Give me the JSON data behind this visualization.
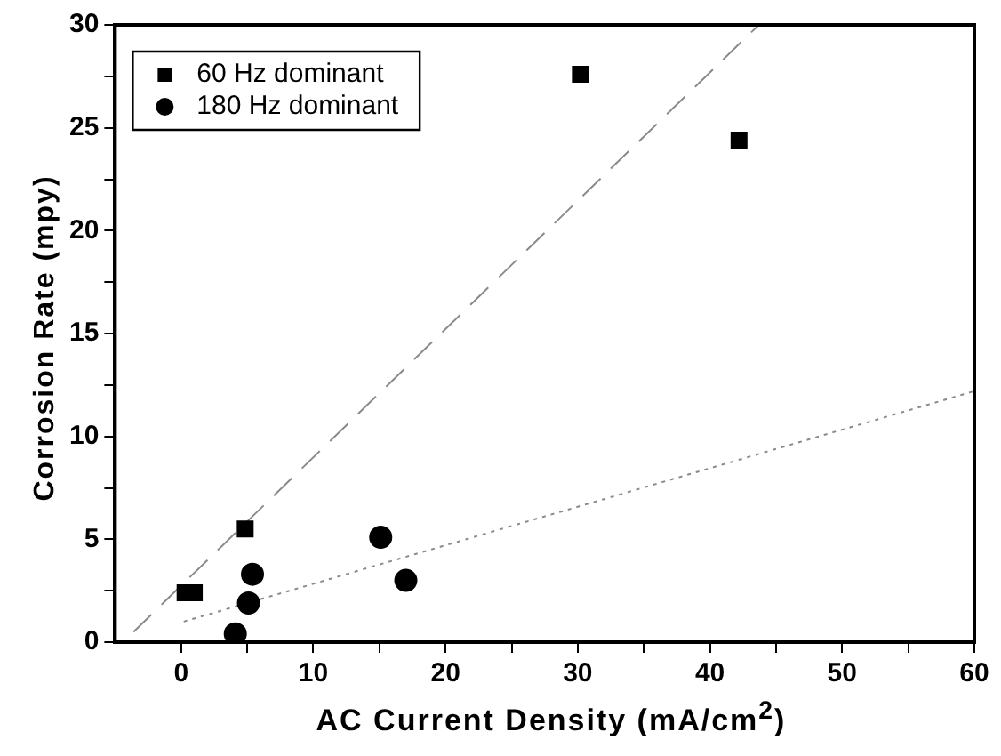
{
  "chart_data": {
    "type": "scatter",
    "xlabel": "AC Current Density (mA/cm$^{2}$)",
    "ylabel": "Corrosion Rate (mpy)",
    "xlim": [
      -5,
      60
    ],
    "xticks": [
      0,
      {
        "value": 5,
        "label": null
      },
      10,
      {
        "value": 15,
        "label": null
      },
      20,
      {
        "value": 25,
        "label": null
      },
      30,
      {
        "value": 35,
        "label": null
      },
      40,
      {
        "value": 45,
        "label": null
      },
      50,
      {
        "value": 55,
        "label": null
      },
      60
    ],
    "ylim": [
      0,
      30
    ],
    "yticks": [
      0,
      {
        "value": 2.5,
        "label": null
      },
      5,
      {
        "value": 7.5,
        "label": null
      },
      10,
      {
        "value": 12.5,
        "label": null
      },
      15,
      {
        "value": 17.5,
        "label": null
      },
      20,
      {
        "value": 22.5,
        "label": null
      },
      25,
      {
        "value": 27.5,
        "label": null
      },
      30
    ],
    "legend": "top left",
    "grid": false,
    "series": [
      {
        "name": "60 Hz dominant",
        "marker": "square",
        "color": "#000000",
        "x": [
          0.3,
          1.0,
          4.85,
          30.2,
          42.2
        ],
        "values": [
          2.4,
          2.4,
          5.5,
          27.6,
          24.4
        ]
      },
      {
        "name": "180 Hz dominant",
        "marker": "circle",
        "color": "#000000",
        "x": [
          4.1,
          5.1,
          5.4,
          15.1,
          17.0
        ],
        "values": [
          0.4,
          1.9,
          3.3,
          5.1,
          3.0
        ]
      },
      {
        "type": "line",
        "marker": "none",
        "line_style": "dashed",
        "color": "#8a8a8a",
        "x": [
          -3.6,
          43.7
        ],
        "values": [
          0.5,
          30
        ]
      },
      {
        "type": "line",
        "marker": "none",
        "line_style": "dotted",
        "color": "#8a8a8a",
        "x": [
          0.2,
          60
        ],
        "values": [
          1.0,
          12.2
        ]
      }
    ]
  }
}
